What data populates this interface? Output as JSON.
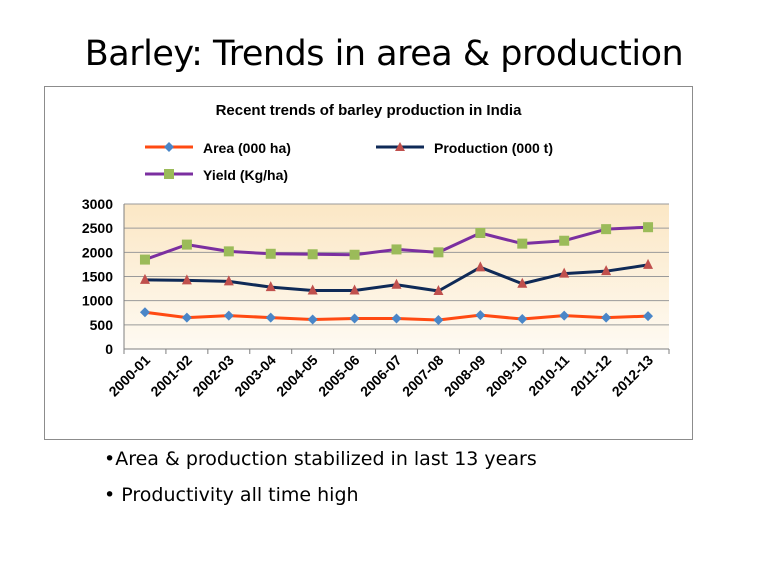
{
  "slide": {
    "title": "Barley: Trends in area & production",
    "bullets": [
      "•Area & production stabilized in last 13 years",
      "• Productivity all time high"
    ]
  },
  "chart_data": {
    "type": "line",
    "title": "Recent trends of barley  production in India",
    "categories": [
      "2000-01",
      "2001-02",
      "2002-03",
      "2003-04",
      "2004-05",
      "2005-06",
      "2006-07",
      "2007-08",
      "2008-09",
      "2009-10",
      "2010-11",
      "2011-12",
      "2012-13"
    ],
    "ylim": [
      0,
      3000
    ],
    "yticks": [
      "0",
      "500",
      "1000",
      "1500",
      "2000",
      "2500",
      "3000"
    ],
    "grid": true,
    "legend_placement": "top",
    "series": [
      {
        "name": "Area (000 ha)",
        "color": "#ff4a12",
        "marker": "diamond",
        "marker_color": "#4a86c8",
        "values": [
          760,
          650,
          690,
          650,
          610,
          630,
          630,
          600,
          700,
          620,
          690,
          650,
          680
        ]
      },
      {
        "name": "Production (000 t)",
        "color": "#0f2a57",
        "marker": "triangle",
        "marker_color": "#c0504d",
        "values": [
          1430,
          1420,
          1400,
          1280,
          1210,
          1210,
          1330,
          1200,
          1690,
          1350,
          1560,
          1610,
          1740
        ]
      },
      {
        "name": "Yield (Kg/ha)",
        "color": "#7b2fa0",
        "marker": "square",
        "marker_color": "#9bbb59",
        "values": [
          1850,
          2160,
          2020,
          1970,
          1960,
          1950,
          2060,
          2000,
          2400,
          2180,
          2240,
          2480,
          2520
        ]
      }
    ]
  }
}
